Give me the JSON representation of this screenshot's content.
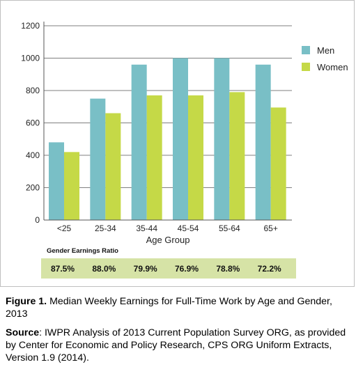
{
  "chart_data": {
    "type": "bar",
    "categories": [
      "<25",
      "25-34",
      "35-44",
      "45-54",
      "55-64",
      "65+"
    ],
    "series": [
      {
        "name": "Men",
        "values": [
          480,
          750,
          960,
          1000,
          1000,
          960
        ],
        "color": "#79bfc6"
      },
      {
        "name": "Women",
        "values": [
          420,
          660,
          770,
          770,
          790,
          695
        ],
        "color": "#c5d947"
      }
    ],
    "xlabel": "Age Group",
    "ylabel": "",
    "ylim": [
      0,
      1200
    ],
    "yticks": [
      "0",
      "200",
      "400",
      "600",
      "800",
      "1000",
      "1200"
    ],
    "grid": true,
    "legend": "top-right",
    "ratio_table": {
      "title": "Gender Earnings Ratio",
      "values": [
        "87.5%",
        "88.0%",
        "79.9%",
        "76.9%",
        "78.8%",
        "72.2%"
      ],
      "background": "#d6e3a6"
    }
  },
  "caption": {
    "figure_label": "Figure 1.",
    "figure_text": " Median Weekly Earnings for Full-Time Work by Age and Gender, 2013",
    "source_label": "Source",
    "source_text": ": IWPR Analysis of 2013 Current Population Survey ORG, as provided by Center for Economic and Policy Research, CPS ORG Uniform Extracts, Version 1.9 (2014)."
  }
}
